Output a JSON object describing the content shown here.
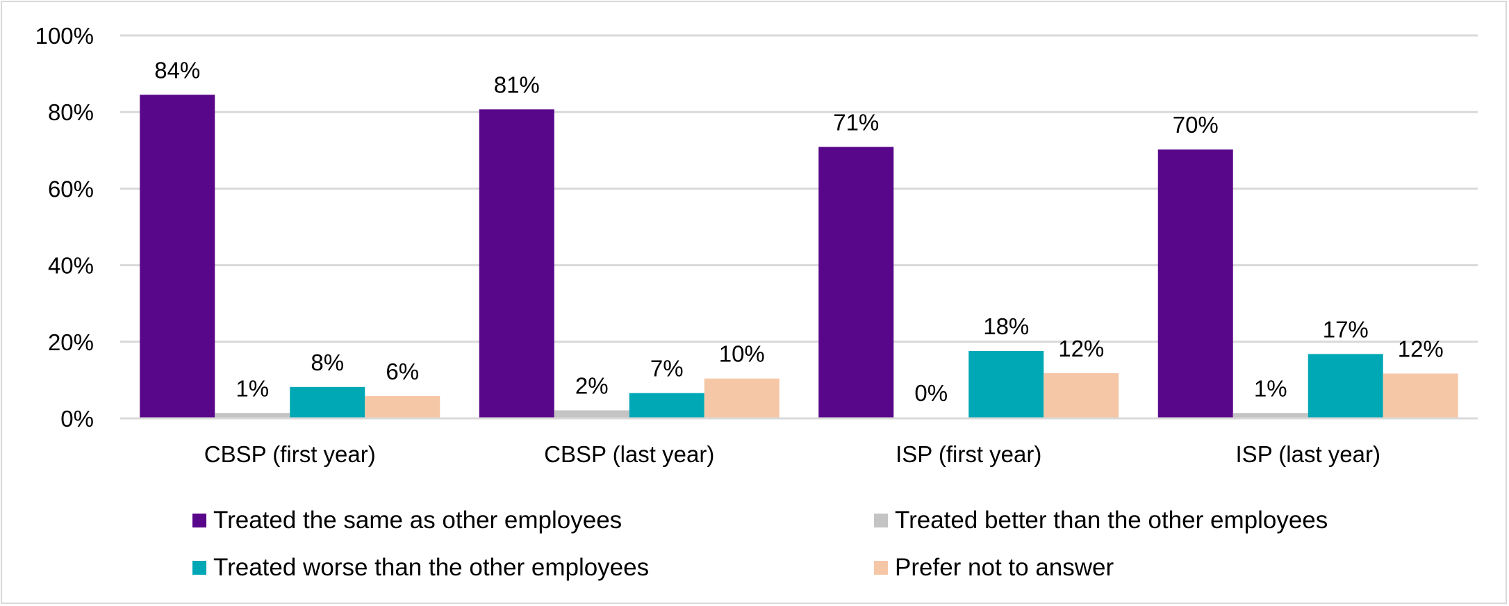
{
  "chart_data": {
    "type": "bar",
    "title": "",
    "xlabel": "",
    "ylabel": "",
    "ylim": [
      0,
      100
    ],
    "yticks": [
      0,
      20,
      40,
      60,
      80,
      100
    ],
    "ytick_labels": [
      "0%",
      "20%",
      "40%",
      "60%",
      "80%",
      "100%"
    ],
    "grid": true,
    "legend_position": "bottom",
    "categories": [
      "CBSP (first year)",
      "CBSP (last year)",
      "ISP (first year)",
      "ISP (last year)"
    ],
    "series": [
      {
        "name": "Treated the same as other employees",
        "color": "#58068a",
        "values": [
          84.5,
          80.7,
          70.9,
          70.2
        ],
        "labels": [
          "84%",
          "81%",
          "71%",
          "70%"
        ]
      },
      {
        "name": "Treated better than the other employees",
        "color": "#c4c4c4",
        "values": [
          1.4,
          2.1,
          0.2,
          1.4
        ],
        "labels": [
          "1%",
          "2%",
          "0%",
          "1%"
        ]
      },
      {
        "name": "Treated worse than the other employees",
        "color": "#00a7b5",
        "values": [
          8.2,
          6.6,
          17.6,
          16.8
        ],
        "labels": [
          "8%",
          "7%",
          "18%",
          "17%"
        ]
      },
      {
        "name": "Prefer not to answer",
        "color": "#f5c7a7",
        "values": [
          5.8,
          10.4,
          11.8,
          11.7
        ],
        "labels": [
          "6%",
          "10%",
          "12%",
          "12%"
        ]
      }
    ]
  }
}
